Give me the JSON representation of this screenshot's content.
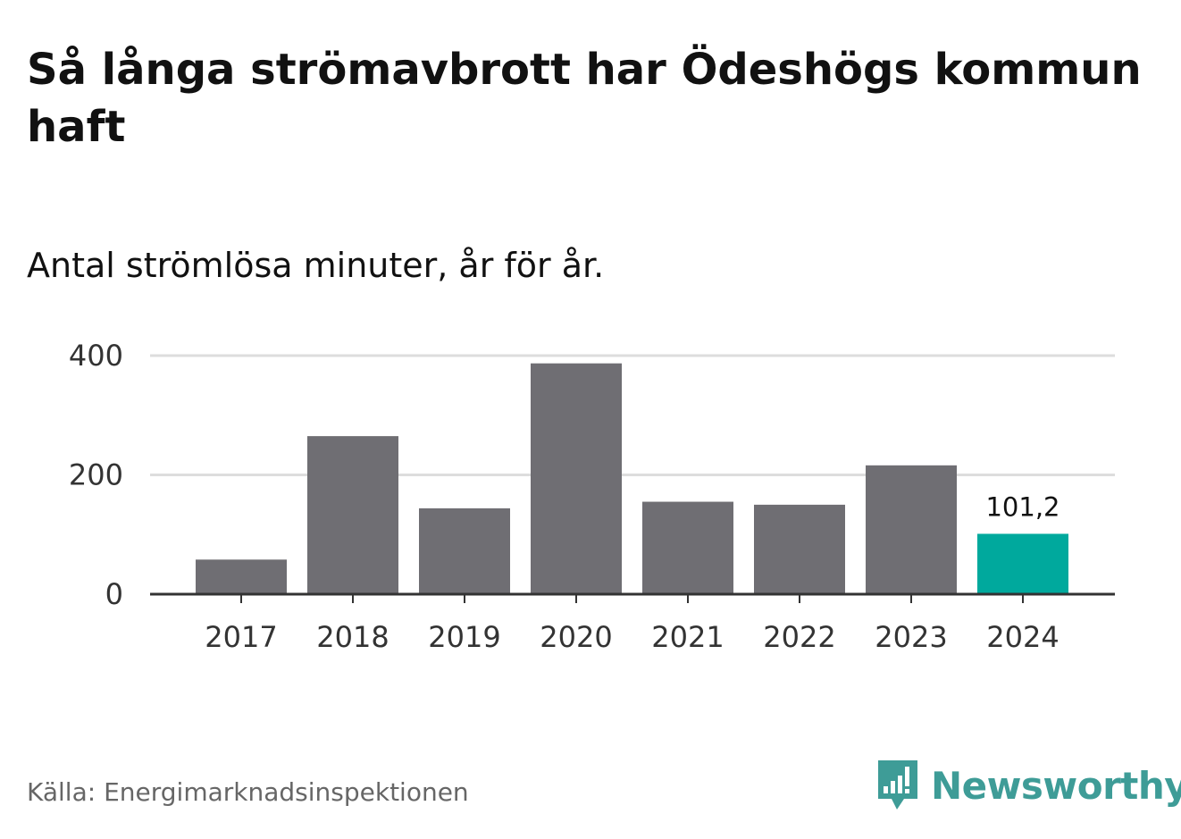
{
  "header": {
    "title": "Så långa strömavbrott har Ödeshögs kommun haft",
    "subtitle": "Antal strömlösa minuter, år för år."
  },
  "chart_data": {
    "type": "bar",
    "title": "Så långa strömavbrott har Ödeshögs kommun haft",
    "subtitle": "Antal strömlösa minuter, år för år.",
    "xlabel": "",
    "ylabel": "",
    "categories": [
      "2017",
      "2018",
      "2019",
      "2020",
      "2021",
      "2022",
      "2023",
      "2024"
    ],
    "values": [
      58,
      265,
      144,
      387,
      155,
      150,
      216,
      101.2
    ],
    "ylim": [
      0,
      400
    ],
    "yticks": [
      0,
      200,
      400
    ],
    "grid": true,
    "highlight_index": 7,
    "highlight_label": "101,2",
    "colors": {
      "bar": "#6f6e73",
      "highlight": "#00a99d",
      "grid": "#dddddd",
      "axis": "#333333"
    }
  },
  "footer": {
    "source": "Källa: Energimarknadsinspektionen",
    "brand": "Newsworthy",
    "brand_icon": "newsworthy-logo-icon",
    "brand_color": "#3e9c97"
  }
}
